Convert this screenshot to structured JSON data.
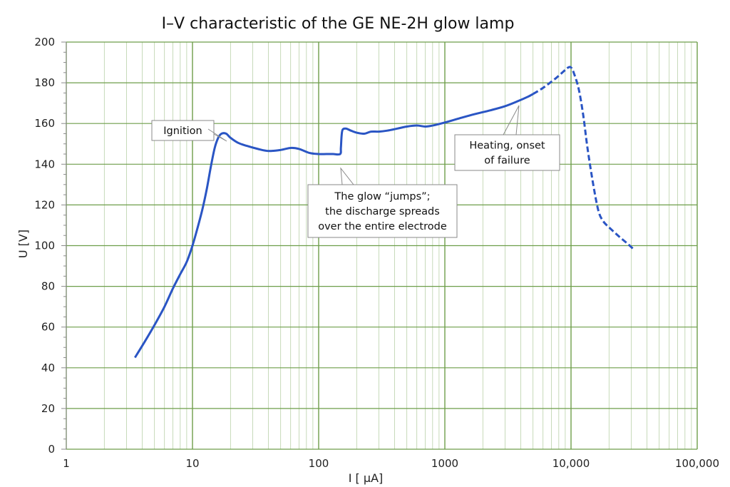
{
  "chart_data": {
    "type": "line",
    "title": "I–V characteristic of the GE NE-2H glow lamp",
    "xlabel": "I [ µA]",
    "ylabel": "U [V]",
    "x_scale": "log",
    "xlim": [
      1,
      100000
    ],
    "ylim": [
      0,
      200
    ],
    "x_ticks": [
      {
        "value": 1,
        "label": "1"
      },
      {
        "value": 10,
        "label": "10"
      },
      {
        "value": 100,
        "label": "100"
      },
      {
        "value": 1000,
        "label": "1000"
      },
      {
        "value": 10000,
        "label": "10,000"
      },
      {
        "value": 100000,
        "label": "100,000"
      }
    ],
    "y_ticks": [
      0,
      20,
      40,
      60,
      80,
      100,
      120,
      140,
      160,
      180,
      200
    ],
    "y_minor_step": 5,
    "grid": true,
    "grid_color": "#6e9e4a",
    "series": [
      {
        "style": "solid",
        "color": "#2a55c4",
        "points": [
          [
            3.5,
            45
          ],
          [
            4.2,
            53
          ],
          [
            5,
            61
          ],
          [
            6,
            70
          ],
          [
            7,
            79
          ],
          [
            8,
            86
          ],
          [
            9,
            92
          ],
          [
            10,
            100
          ],
          [
            11,
            109
          ],
          [
            12,
            118
          ],
          [
            13,
            128
          ],
          [
            14,
            139
          ],
          [
            15,
            148
          ],
          [
            16,
            153
          ],
          [
            17,
            155
          ],
          [
            18.5,
            155
          ],
          [
            20,
            153
          ],
          [
            23,
            150.5
          ],
          [
            27,
            149
          ],
          [
            33,
            147.5
          ],
          [
            40,
            146.5
          ],
          [
            50,
            147
          ],
          [
            60,
            148
          ],
          [
            70,
            147.5
          ],
          [
            85,
            145.5
          ],
          [
            100,
            145
          ],
          [
            115,
            145
          ],
          [
            130,
            145
          ],
          [
            148,
            145
          ],
          [
            150,
            148
          ],
          [
            152,
            154
          ],
          [
            155,
            157
          ],
          [
            165,
            157.5
          ],
          [
            180,
            156.5
          ],
          [
            200,
            155.5
          ],
          [
            230,
            155
          ],
          [
            260,
            156
          ],
          [
            300,
            156
          ],
          [
            350,
            156.5
          ],
          [
            420,
            157.5
          ],
          [
            500,
            158.5
          ],
          [
            600,
            159
          ],
          [
            700,
            158.5
          ],
          [
            800,
            159
          ],
          [
            1000,
            160.5
          ],
          [
            1300,
            162.5
          ],
          [
            1700,
            164.5
          ],
          [
            2300,
            166.5
          ],
          [
            3000,
            168.5
          ],
          [
            3800,
            171
          ],
          [
            4500,
            173
          ],
          [
            5000,
            174.5
          ]
        ]
      },
      {
        "style": "dashed",
        "color": "#2a55c4",
        "points": [
          [
            5000,
            174.5
          ],
          [
            6000,
            177.5
          ],
          [
            7500,
            182
          ],
          [
            8700,
            185.5
          ],
          [
            9500,
            187.5
          ],
          [
            10000,
            187.5
          ],
          [
            10500,
            185
          ],
          [
            11500,
            177
          ],
          [
            12500,
            164
          ],
          [
            13500,
            148
          ],
          [
            15000,
            130
          ],
          [
            16500,
            117
          ],
          [
            18000,
            112
          ],
          [
            20000,
            109
          ],
          [
            24000,
            104.5
          ],
          [
            28000,
            101
          ],
          [
            31000,
            98.5
          ]
        ]
      }
    ],
    "annotations": [
      {
        "lines": [
          "Ignition"
        ],
        "point": [
          18.5,
          155
        ]
      },
      {
        "lines": [
          "The glow “jumps”;",
          "the discharge spreads",
          "over the entire electrode"
        ],
        "point": [
          150,
          145
        ]
      },
      {
        "lines": [
          "Heating, onset",
          "of failure"
        ],
        "point": [
          3800,
          171
        ]
      }
    ]
  }
}
